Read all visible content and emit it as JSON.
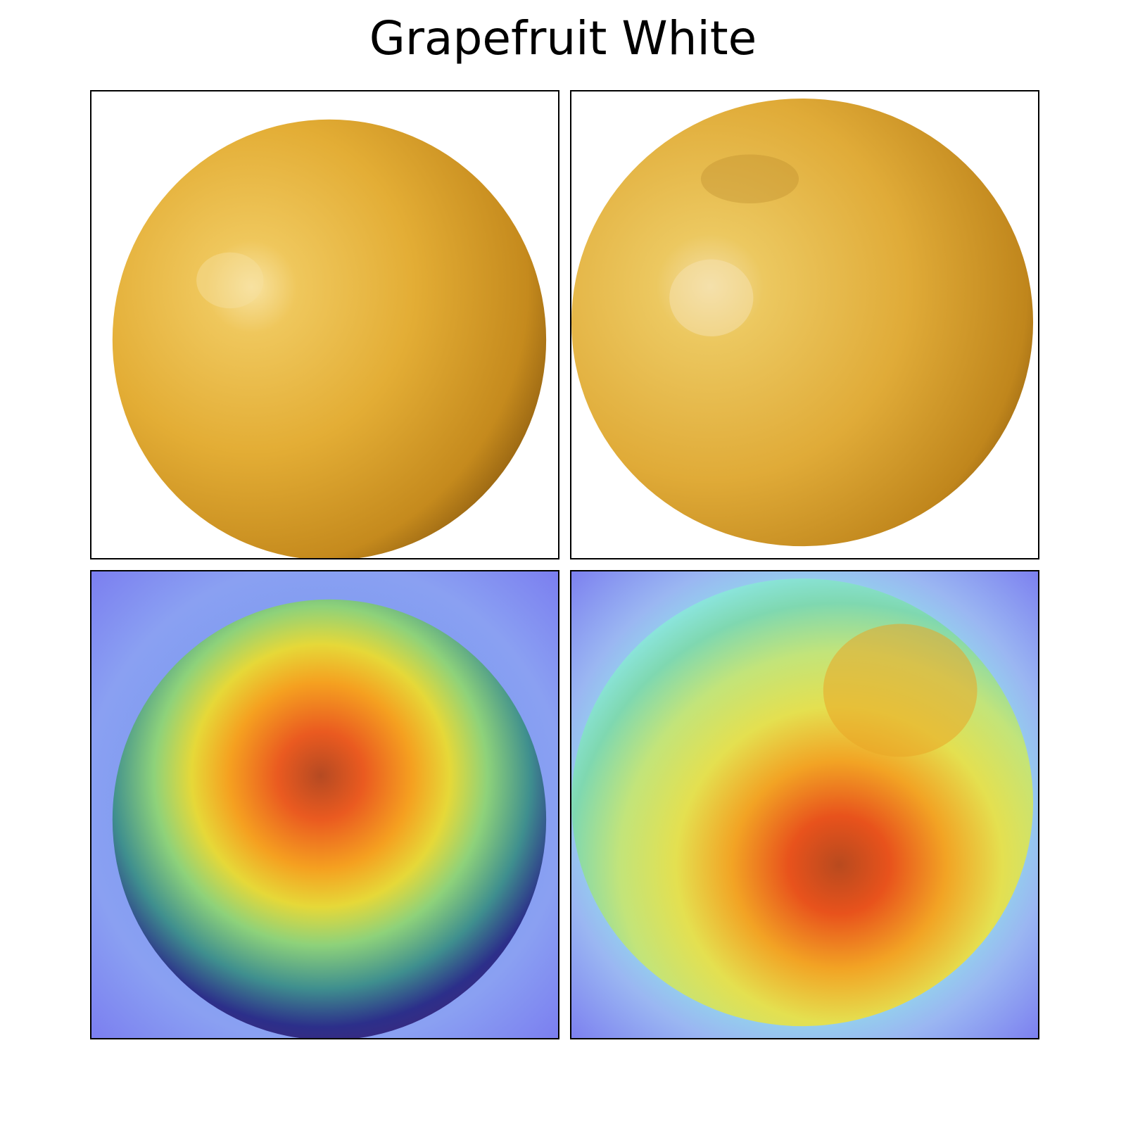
{
  "figure": {
    "title": "Grapefruit White"
  },
  "panels": [
    {
      "row": "original",
      "content": "photo-grapefruit-1"
    },
    {
      "row": "original",
      "content": "photo-grapefruit-2"
    },
    {
      "row": "heatmap-overlay",
      "content": "saliency-heatmap-grapefruit-1"
    },
    {
      "row": "heatmap-overlay",
      "content": "saliency-heatmap-grapefruit-2"
    }
  ],
  "colors": {
    "fruit": "#e6b23a",
    "fruit_highlight": "#f6dc8a",
    "fruit_shadow": "#9b6a12",
    "heatmap_low": "#7a7cf0",
    "heatmap_high": "#c4401e"
  }
}
